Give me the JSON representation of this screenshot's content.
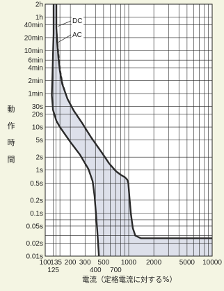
{
  "chart_data": {
    "type": "line",
    "title": "",
    "xlabel": "電流（定格電流に対する%）",
    "ylabel": [
      "動",
      "作",
      "時",
      "間"
    ],
    "x_scale": "log",
    "y_scale": "log",
    "xlim": [
      100,
      10000
    ],
    "ylim_seconds": [
      0.01,
      7200
    ],
    "x_tick_labels_top_row": [
      {
        "x": 100,
        "label": "100"
      },
      {
        "x": 135,
        "label": "135"
      },
      {
        "x": 200,
        "label": "200"
      },
      {
        "x": 300,
        "label": "300"
      },
      {
        "x": 500,
        "label": "500"
      },
      {
        "x": 1000,
        "label": "1000"
      },
      {
        "x": 2000,
        "label": "2000"
      },
      {
        "x": 5000,
        "label": "5000"
      },
      {
        "x": 10000,
        "label": "10000"
      }
    ],
    "x_tick_labels_bottom_row": [
      {
        "x": 125,
        "label": "125"
      },
      {
        "x": 400,
        "label": "400"
      },
      {
        "x": 700,
        "label": "700"
      }
    ],
    "y_ticks": [
      {
        "value": 7200,
        "label": "2h"
      },
      {
        "value": 3600,
        "label": "1h"
      },
      {
        "value": 2400,
        "label": "40min"
      },
      {
        "value": 1200,
        "label": "20min"
      },
      {
        "value": 600,
        "label": "10min"
      },
      {
        "value": 360,
        "label": "6min"
      },
      {
        "value": 240,
        "label": "4min"
      },
      {
        "value": 120,
        "label": "2min"
      },
      {
        "value": 60,
        "label": "1min"
      },
      {
        "value": 30,
        "label": "30s"
      },
      {
        "value": 20,
        "label": "20s"
      },
      {
        "value": 10,
        "label": "10s"
      },
      {
        "value": 5,
        "label": "5s"
      },
      {
        "value": 2,
        "label": "2s"
      },
      {
        "value": 1,
        "label": "1s"
      },
      {
        "value": 0.5,
        "label": "0.5s"
      },
      {
        "value": 0.2,
        "label": "0.2s"
      },
      {
        "value": 0.1,
        "label": "0.1s"
      },
      {
        "value": 0.05,
        "label": "0.05s"
      },
      {
        "value": 0.02,
        "label": "0.02s"
      },
      {
        "value": 0.01,
        "label": "0.01s"
      }
    ],
    "x_grid": [
      100,
      125,
      135,
      150,
      200,
      300,
      400,
      500,
      600,
      700,
      800,
      900,
      1000,
      2000,
      3000,
      4000,
      5000,
      6000,
      7000,
      8000,
      9000,
      10000
    ],
    "y_grid": [
      7200,
      3600,
      2400,
      1200,
      600,
      360,
      240,
      120,
      60,
      30,
      20,
      10,
      5,
      2,
      1,
      0.5,
      0.2,
      0.1,
      0.07,
      0.05,
      0.03,
      0.02,
      0.01
    ],
    "grid": true,
    "series": [
      {
        "name": "DC",
        "role": "upper",
        "dashed": true,
        "points": [
          [
            136,
            7200
          ],
          [
            136,
            2000
          ],
          [
            140,
            1000
          ],
          [
            146,
            400
          ],
          [
            152,
            200
          ],
          [
            162,
            100
          ],
          [
            185,
            45
          ],
          [
            220,
            24
          ],
          [
            280,
            12
          ],
          [
            350,
            6
          ],
          [
            480,
            2.5
          ],
          [
            580,
            1.45
          ],
          [
            700,
            0.95
          ],
          [
            800,
            0.78
          ],
          [
            900,
            0.68
          ],
          [
            960,
            0.6
          ],
          [
            990,
            0.5
          ],
          [
            1010,
            0.3
          ],
          [
            1060,
            0.1
          ],
          [
            1120,
            0.045
          ],
          [
            1200,
            0.03
          ],
          [
            1400,
            0.026
          ],
          [
            2000,
            0.026
          ],
          [
            10000,
            0.026
          ]
        ]
      },
      {
        "name": "AC",
        "role": "upper",
        "dashed": false,
        "points": [
          [
            136,
            7200
          ],
          [
            136,
            2000
          ],
          [
            139,
            1000
          ],
          [
            144,
            400
          ],
          [
            150,
            200
          ],
          [
            160,
            100
          ],
          [
            185,
            45
          ],
          [
            220,
            24
          ],
          [
            280,
            12
          ],
          [
            350,
            6
          ],
          [
            480,
            2.5
          ],
          [
            580,
            1.45
          ],
          [
            700,
            0.95
          ],
          [
            800,
            0.78
          ],
          [
            900,
            0.68
          ],
          [
            960,
            0.6
          ],
          [
            990,
            0.5
          ],
          [
            1010,
            0.3
          ],
          [
            1060,
            0.1
          ],
          [
            1120,
            0.045
          ],
          [
            1200,
            0.03
          ],
          [
            1400,
            0.026
          ],
          [
            2000,
            0.026
          ],
          [
            10000,
            0.026
          ]
        ]
      },
      {
        "name": "",
        "role": "lower",
        "dashed": false,
        "points": [
          [
            126,
            7200
          ],
          [
            126,
            1500
          ],
          [
            124,
            500
          ],
          [
            122,
            150
          ],
          [
            120,
            55
          ],
          [
            124,
            25
          ],
          [
            136,
            14
          ],
          [
            150,
            10
          ],
          [
            200,
            4.5
          ],
          [
            260,
            2.3
          ],
          [
            330,
            1.05
          ],
          [
            370,
            0.55
          ],
          [
            390,
            0.25
          ],
          [
            405,
            0.1
          ],
          [
            420,
            0.04
          ],
          [
            440,
            0.01
          ]
        ]
      }
    ],
    "annotations": [
      {
        "text": "DC",
        "points_to_series": "DC"
      },
      {
        "text": "AC",
        "points_to_series": "AC"
      }
    ],
    "colors": {
      "background": "#f4f5e3",
      "plot_area": "#ffffff",
      "band_fill": "#dde0ea",
      "curve": "#2a2a2a",
      "grid": "#222222"
    }
  }
}
